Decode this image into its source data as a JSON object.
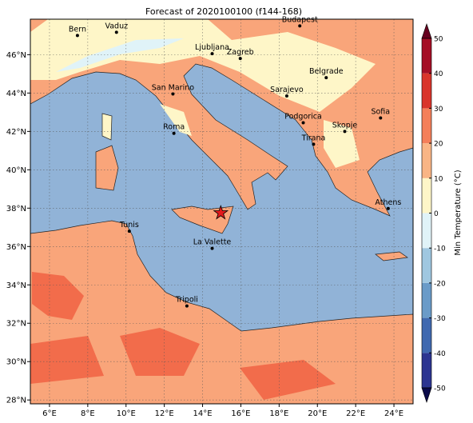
{
  "title": "Forecast of 2020100100 (f144-168)",
  "map": {
    "xlim": [
      5,
      25
    ],
    "ylim": [
      27.8,
      47.85
    ],
    "xticks": [
      {
        "value": 6,
        "label": "6°E"
      },
      {
        "value": 8,
        "label": "8°E"
      },
      {
        "value": 10,
        "label": "10°E"
      },
      {
        "value": 12,
        "label": "12°E"
      },
      {
        "value": 14,
        "label": "14°E"
      },
      {
        "value": 16,
        "label": "16°E"
      },
      {
        "value": 18,
        "label": "18°E"
      },
      {
        "value": 20,
        "label": "20°E"
      },
      {
        "value": 22,
        "label": "22°E"
      },
      {
        "value": 24,
        "label": "24°E"
      }
    ],
    "yticks": [
      {
        "value": 28,
        "label": "28°N"
      },
      {
        "value": 30,
        "label": "30°N"
      },
      {
        "value": 32,
        "label": "32°N"
      },
      {
        "value": 34,
        "label": "34°N"
      },
      {
        "value": 36,
        "label": "36°N"
      },
      {
        "value": 38,
        "label": "38°N"
      },
      {
        "value": 40,
        "label": "40°N"
      },
      {
        "value": 42,
        "label": "42°N"
      },
      {
        "value": 44,
        "label": "44°N"
      },
      {
        "value": 46,
        "label": "46°N"
      }
    ],
    "grid": true,
    "cities": [
      {
        "name": "Bern",
        "lon": 7.46,
        "lat": 47.0
      },
      {
        "name": "Vaduz",
        "lon": 9.5,
        "lat": 47.17
      },
      {
        "name": "Budapest",
        "lon": 19.08,
        "lat": 47.5
      },
      {
        "name": "Ljubljana",
        "lon": 14.5,
        "lat": 46.05
      },
      {
        "name": "Zagreb",
        "lon": 15.97,
        "lat": 45.8
      },
      {
        "name": "Belgrade",
        "lon": 20.46,
        "lat": 44.8
      },
      {
        "name": "San Marino",
        "lon": 12.45,
        "lat": 43.95
      },
      {
        "name": "Sarajevo",
        "lon": 18.4,
        "lat": 43.85
      },
      {
        "name": "Sofia",
        "lon": 23.3,
        "lat": 42.7
      },
      {
        "name": "Podgorica",
        "lon": 19.26,
        "lat": 42.45
      },
      {
        "name": "Skopje",
        "lon": 21.43,
        "lat": 42.0
      },
      {
        "name": "Roma",
        "lon": 12.5,
        "lat": 41.9
      },
      {
        "name": "Tirana",
        "lon": 19.8,
        "lat": 41.33
      },
      {
        "name": "Athens",
        "lon": 23.7,
        "lat": 37.98
      },
      {
        "name": "Tunis",
        "lon": 10.17,
        "lat": 36.8
      },
      {
        "name": "La Valette",
        "lon": 14.5,
        "lat": 35.9
      },
      {
        "name": "Tripoli",
        "lon": 13.18,
        "lat": 32.9
      }
    ],
    "marker": {
      "lon": 14.95,
      "lat": 37.75,
      "color": "#e41a1c"
    }
  },
  "colorbar": {
    "label": "Min Temperature (°C)",
    "ticks": [
      -50,
      -40,
      -30,
      -20,
      -10,
      0,
      10,
      20,
      30,
      40,
      50
    ],
    "colors": [
      "#2c3591",
      "#4069b0",
      "#6a9bc8",
      "#9fc7e0",
      "#e0f3f8",
      "#fef6c8",
      "#f9b585",
      "#f47f5a",
      "#d9352b",
      "#a50f26"
    ],
    "extend_colors": [
      "#0a0a4a",
      "#67001f"
    ]
  }
}
